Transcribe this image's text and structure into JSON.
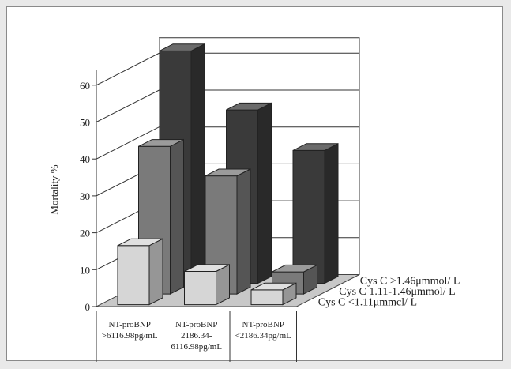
{
  "chart_data": {
    "type": "bar",
    "subtype": "3d-grouped",
    "title": "",
    "ylabel": "Mortality   %",
    "xlabel": "",
    "ylim": [
      0,
      60
    ],
    "yticks": [
      0,
      10,
      20,
      30,
      40,
      50,
      60
    ],
    "grid": true,
    "categories": [
      [
        "NT-proBNP",
        ">6116.98pg/mL"
      ],
      [
        "NT-proBNP",
        "2186.34-",
        "6116.98pg/mL"
      ],
      [
        "NT-proBNP",
        "<2186.34pg/mL"
      ]
    ],
    "series": [
      {
        "name": "Cys C >1.46μmmol/ L",
        "values": [
          63,
          47,
          36
        ],
        "color": "#3a3a3a"
      },
      {
        "name": "Cys C 1.11-1.46μmmol/ L",
        "values": [
          40,
          32,
          6
        ],
        "color": "#7a7a7a"
      },
      {
        "name": "Cys C <1.11μmmcl/ L",
        "values": [
          16,
          9,
          4
        ],
        "color": "#d6d6d6"
      }
    ]
  }
}
